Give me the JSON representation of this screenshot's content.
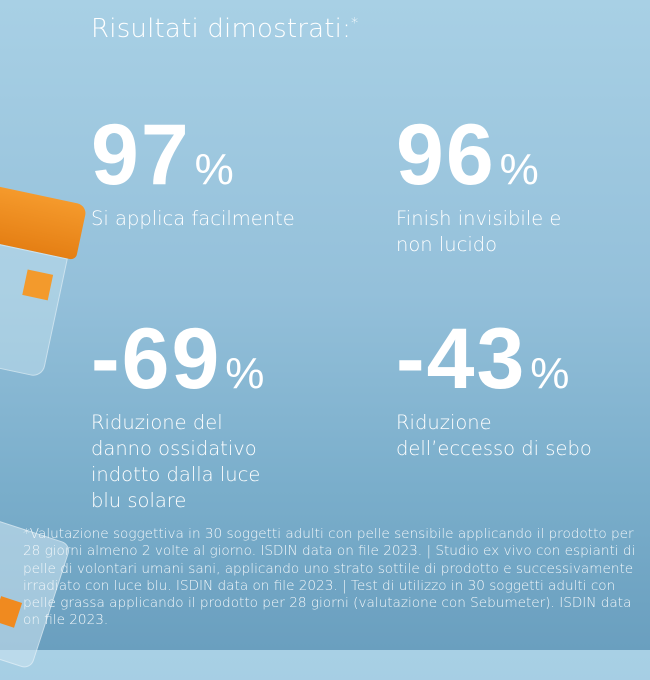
{
  "title": "Risultati dimostrati:",
  "title_mark": "*",
  "colors": {
    "accent_orange": "#f39a2c",
    "background_top": "#a8d0e5",
    "background_bottom": "#6a9fbf"
  },
  "stats": [
    {
      "value": "97",
      "unit": "%",
      "label": "Si applica facilmente"
    },
    {
      "value": "96",
      "unit": "%",
      "label": "Finish invisibile e\nnon lucido"
    },
    {
      "value": "-69",
      "unit": "%",
      "label": "Riduzione del\ndanno ossidativo\nindotto dalla luce\nblu solare"
    },
    {
      "value": "-43",
      "unit": "%",
      "label": "Riduzione\ndell’eccesso di sebo"
    }
  ],
  "footnote": "*Valutazione soggettiva in 30 soggetti adulti con pelle sensibile applicando il prodotto per 28 giorni almeno 2 volte al giorno. ISDIN data on file 2023. | Studio ex vivo con espianti di pelle di volontari umani sani, applicando uno strato sottile di prodotto e successivamente irradiato con luce blu. ISDIN data on file 2023. | Test di utilizzo in 30 soggetti adulti con pelle grassa applicando il prodotto per 28 giorni (valutazione con Sebumeter). ISDIN data on file 2023."
}
